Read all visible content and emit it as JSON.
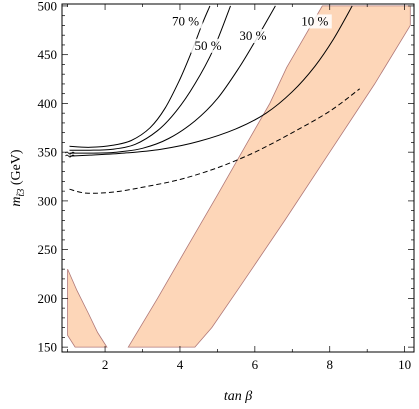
{
  "chart_data": {
    "type": "line",
    "title": "",
    "xlabel": "tan β",
    "ylabel_main": "m",
    "ylabel_sub": "t̃3",
    "ylabel_unit": " (GeV)",
    "xlim": [
      0.85,
      10.25
    ],
    "ylim": [
      145,
      502
    ],
    "x_ticks": [
      2,
      4,
      6,
      8,
      10
    ],
    "y_ticks": [
      150,
      200,
      250,
      300,
      350,
      400,
      450,
      500
    ],
    "grid": false,
    "legend": "none",
    "colors": {
      "fill": "#fdd6b8",
      "fill_edge": "#b07878",
      "line": "#000000"
    },
    "regions": [
      {
        "points": [
          [
            1.0,
            230
          ],
          [
            1.25,
            208
          ],
          [
            1.55,
            185
          ],
          [
            1.8,
            165
          ],
          [
            2.05,
            150
          ],
          [
            1.2,
            150
          ],
          [
            1.0,
            162
          ]
        ]
      },
      {
        "points": [
          [
            2.62,
            150
          ],
          [
            3.4,
            200
          ],
          [
            4.2,
            253
          ],
          [
            5.0,
            306
          ],
          [
            5.8,
            360
          ],
          [
            6.4,
            400
          ],
          [
            6.85,
            437
          ],
          [
            7.35,
            470
          ],
          [
            7.8,
            500
          ],
          [
            10.15,
            500
          ],
          [
            10.15,
            480
          ],
          [
            9.2,
            420
          ],
          [
            8.0,
            350
          ],
          [
            6.8,
            280
          ],
          [
            5.6,
            212
          ],
          [
            4.85,
            170
          ],
          [
            4.4,
            150
          ],
          [
            3.0,
            150
          ]
        ]
      }
    ],
    "series": [
      {
        "label": "70 %",
        "label_pos": [
          4.15,
          480
        ],
        "style": "solid",
        "points": [
          [
            1.05,
            356
          ],
          [
            1.6,
            355
          ],
          [
            2.2,
            357
          ],
          [
            2.7,
            362
          ],
          [
            3.2,
            375
          ],
          [
            3.6,
            395
          ],
          [
            4.0,
            425
          ],
          [
            4.3,
            452
          ],
          [
            4.6,
            482
          ],
          [
            4.8,
            500
          ]
        ]
      },
      {
        "label": "50 %",
        "label_pos": [
          4.75,
          455
        ],
        "style": "solid",
        "points": [
          [
            1.05,
            352
          ],
          [
            1.6,
            352
          ],
          [
            2.2,
            353
          ],
          [
            2.8,
            358
          ],
          [
            3.4,
            372
          ],
          [
            3.9,
            392
          ],
          [
            4.4,
            420
          ],
          [
            4.9,
            456
          ],
          [
            5.35,
            500
          ]
        ]
      },
      {
        "label": "30 %",
        "label_pos": [
          5.95,
          465
        ],
        "style": "solid",
        "points": [
          [
            1.05,
            349
          ],
          [
            1.6,
            349
          ],
          [
            2.3,
            350
          ],
          [
            3.0,
            354
          ],
          [
            3.7,
            364
          ],
          [
            4.4,
            382
          ],
          [
            5.0,
            405
          ],
          [
            5.6,
            438
          ],
          [
            6.1,
            470
          ],
          [
            6.55,
            500
          ]
        ]
      },
      {
        "label": "10 %",
        "label_pos": [
          7.6,
          480
        ],
        "style": "solid",
        "points": [
          [
            1.05,
            346
          ],
          [
            1.6,
            347
          ],
          [
            2.5,
            349
          ],
          [
            3.5,
            353
          ],
          [
            4.5,
            361
          ],
          [
            5.5,
            374
          ],
          [
            6.3,
            390
          ],
          [
            7.0,
            412
          ],
          [
            7.6,
            438
          ],
          [
            8.1,
            466
          ],
          [
            8.6,
            500
          ]
        ]
      },
      {
        "label": "",
        "style": "dashed",
        "points": [
          [
            1.05,
            312
          ],
          [
            1.5,
            308
          ],
          [
            2.2,
            309
          ],
          [
            3.0,
            314
          ],
          [
            4.0,
            322
          ],
          [
            5.0,
            334
          ],
          [
            6.0,
            350
          ],
          [
            7.0,
            370
          ],
          [
            8.0,
            392
          ],
          [
            8.8,
            415
          ]
        ]
      }
    ]
  }
}
